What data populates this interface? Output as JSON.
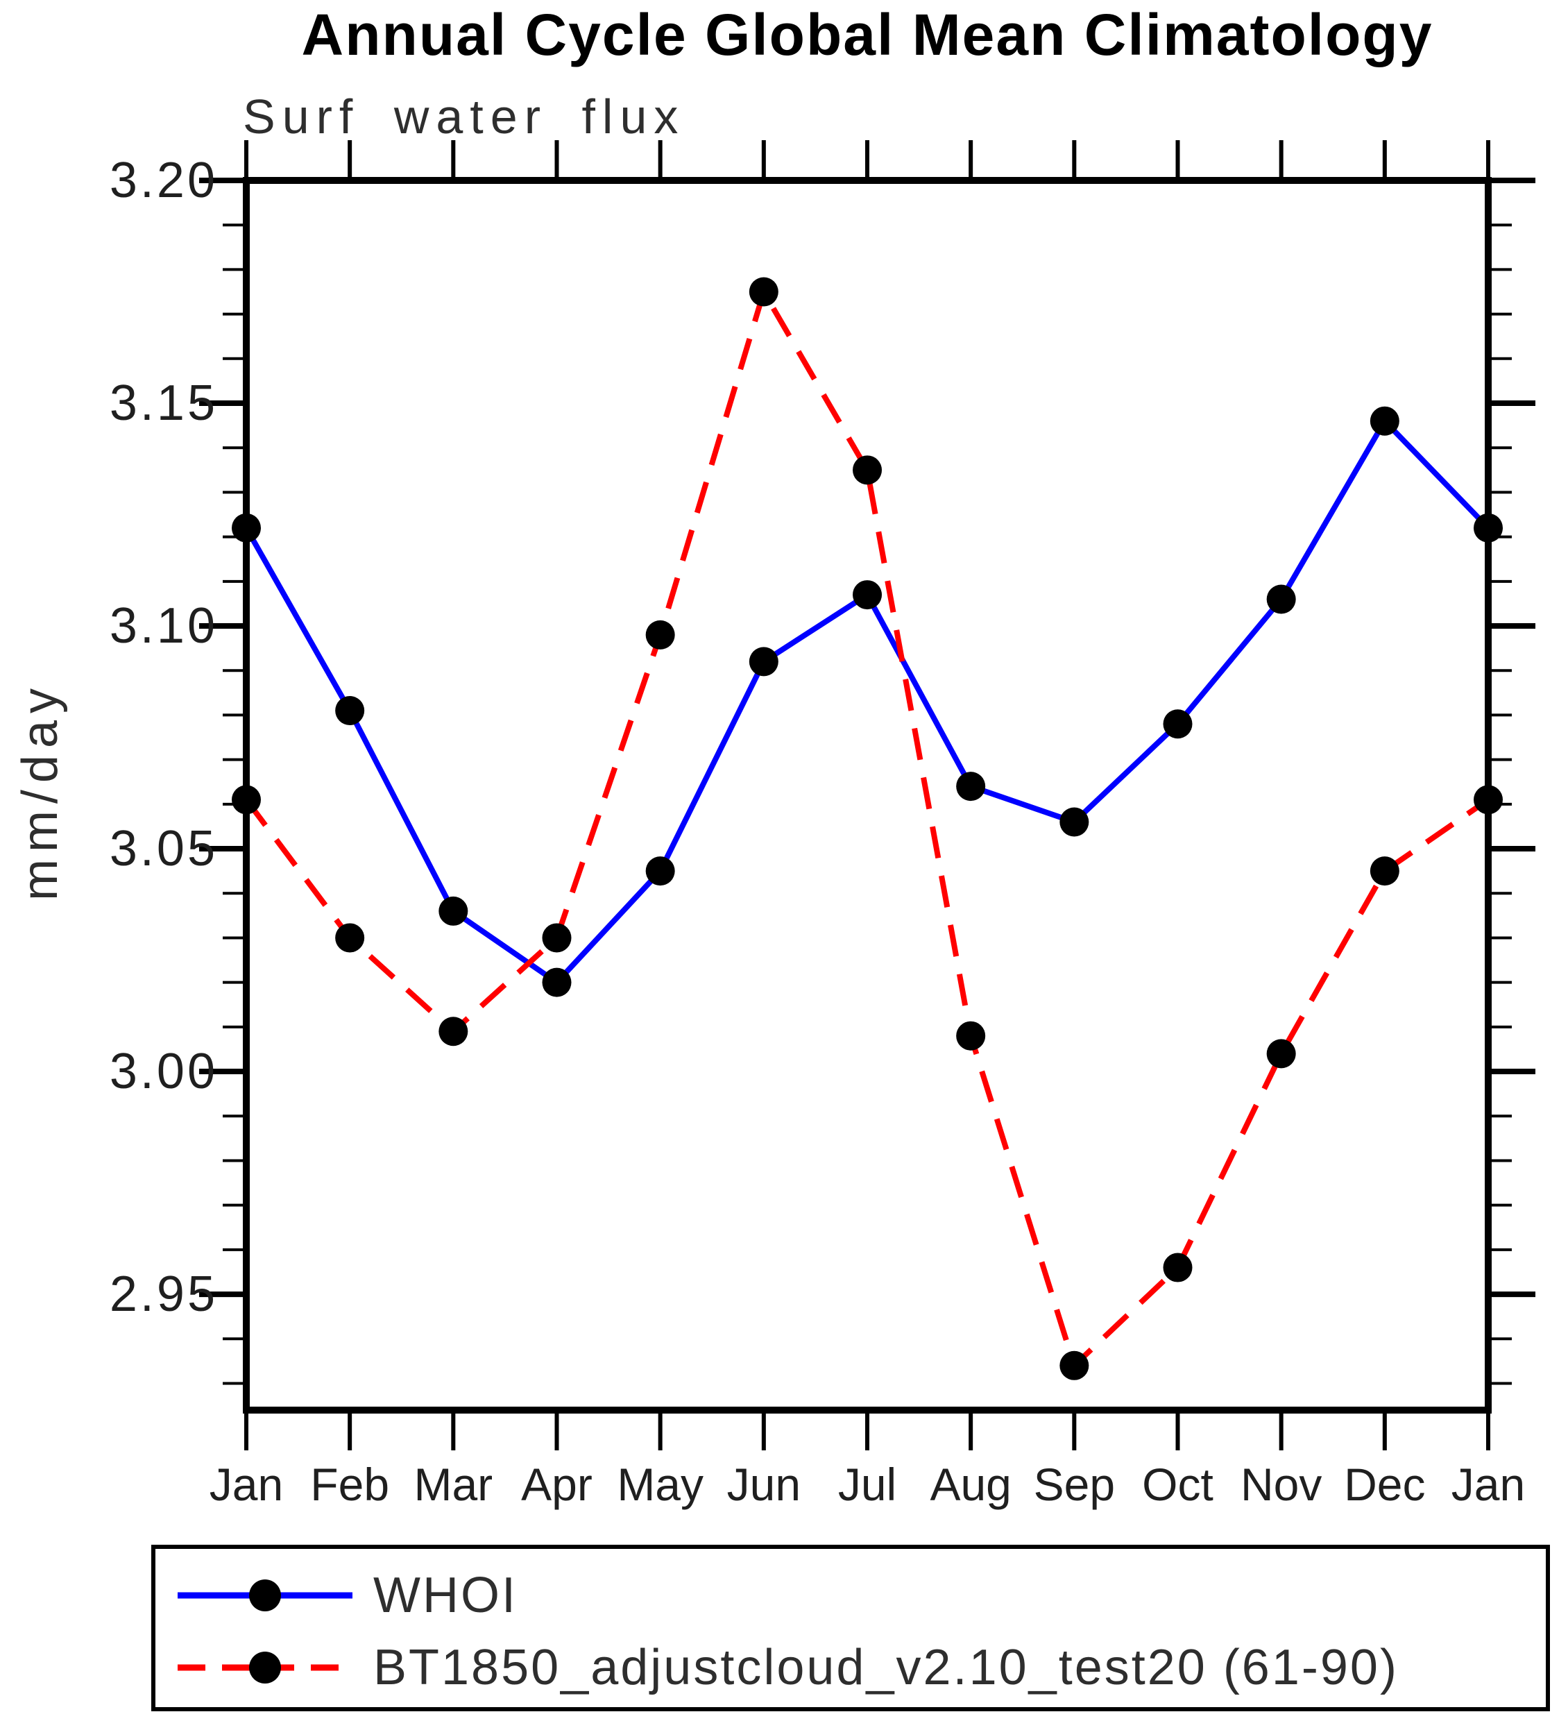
{
  "chart": {
    "title": "Annual Cycle Global Mean Climatology",
    "subtitle": "Surf water flux",
    "ylabel": "mm/day"
  },
  "chart_data": {
    "type": "line",
    "categories": [
      "Jan",
      "Feb",
      "Mar",
      "Apr",
      "May",
      "Jun",
      "Jul",
      "Aug",
      "Sep",
      "Oct",
      "Nov",
      "Dec",
      "Jan"
    ],
    "series": [
      {
        "name": "WHOI",
        "color": "#0000ff",
        "line_style": "solid",
        "marker": "circle",
        "marker_color": "#000000",
        "values": [
          3.122,
          3.081,
          3.036,
          3.02,
          3.045,
          3.092,
          3.107,
          3.064,
          3.056,
          3.078,
          3.106,
          3.146,
          3.122
        ]
      },
      {
        "name": "BT1850_adjustcloud_v2.10_test20 (61-90)",
        "color": "#ff0000",
        "line_style": "dashed",
        "marker": "circle",
        "marker_color": "#000000",
        "values": [
          3.061,
          3.03,
          3.009,
          3.03,
          3.098,
          3.175,
          3.135,
          3.008,
          2.934,
          2.956,
          3.004,
          3.045,
          3.061
        ]
      }
    ],
    "title": "Annual Cycle Global Mean Climatology",
    "subtitle": "Surf water flux",
    "xlabel": "",
    "ylabel": "mm/day",
    "ylim": [
      2.924,
      3.2
    ],
    "yticks": [
      2.95,
      3.0,
      3.05,
      3.1,
      3.15,
      3.2
    ],
    "ytick_labels": [
      "2.95",
      "3.00",
      "3.05",
      "3.10",
      "3.15",
      "3.20"
    ],
    "y_minor_step": 0.01,
    "grid": "off",
    "legend_position": "bottom-left-box",
    "axis_color": "#000000"
  }
}
